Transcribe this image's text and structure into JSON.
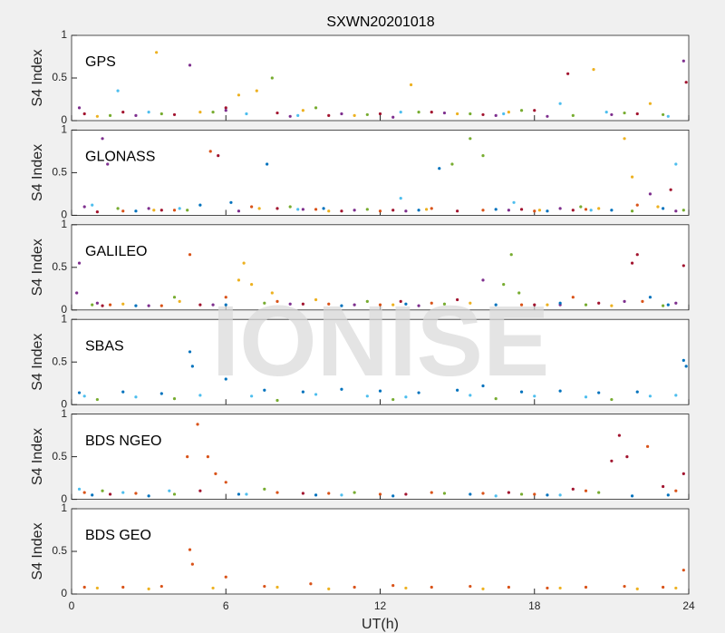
{
  "watermark": "IONISE",
  "chart_data": [
    {
      "type": "scatter",
      "title": "SXWN20201018",
      "label": "GPS",
      "ylabel": "S4 Index",
      "xlim": [
        0,
        24
      ],
      "ylim": [
        0,
        1
      ],
      "yticks": [
        0,
        0.5,
        1
      ],
      "series": [
        {
          "color": "#A2142F",
          "x": [
            0.5,
            2,
            4,
            6,
            8,
            10,
            12,
            14,
            16,
            18,
            19.3,
            22,
            23.9
          ],
          "values": [
            0.08,
            0.1,
            0.07,
            0.15,
            0.09,
            0.06,
            0.08,
            0.1,
            0.07,
            0.12,
            0.55,
            0.08,
            0.45
          ]
        },
        {
          "color": "#EDB120",
          "x": [
            1,
            3.3,
            5,
            6.5,
            7.2,
            9,
            11,
            13.2,
            15,
            17,
            20.3,
            22.5
          ],
          "values": [
            0.05,
            0.8,
            0.1,
            0.3,
            0.35,
            0.12,
            0.06,
            0.42,
            0.08,
            0.1,
            0.6,
            0.2
          ]
        },
        {
          "color": "#7E2F8E",
          "x": [
            0.3,
            2.5,
            4.6,
            6,
            8.5,
            10.5,
            12.5,
            14.5,
            16.5,
            18.5,
            21,
            23.8
          ],
          "values": [
            0.15,
            0.06,
            0.65,
            0.12,
            0.05,
            0.08,
            0.04,
            0.09,
            0.06,
            0.05,
            0.07,
            0.7
          ]
        },
        {
          "color": "#77AC30",
          "x": [
            1.5,
            3.5,
            5.5,
            7.8,
            9.5,
            11.5,
            13.5,
            15.5,
            17.5,
            19.5,
            21.5,
            23
          ],
          "values": [
            0.06,
            0.08,
            0.1,
            0.5,
            0.15,
            0.07,
            0.1,
            0.08,
            0.12,
            0.06,
            0.09,
            0.07
          ]
        },
        {
          "color": "#4DBEEE",
          "x": [
            1.8,
            3,
            6.8,
            8.8,
            12.8,
            16.8,
            19,
            20.8,
            23.2
          ],
          "values": [
            0.35,
            0.1,
            0.08,
            0.06,
            0.1,
            0.08,
            0.2,
            0.1,
            0.05
          ]
        }
      ]
    },
    {
      "type": "scatter",
      "label": "GLONASS",
      "ylabel": "S4 Index",
      "xlim": [
        0,
        24
      ],
      "ylim": [
        0,
        1
      ],
      "yticks": [
        0,
        0.5,
        1
      ],
      "series": [
        {
          "color": "#7E2F8E",
          "x": [
            0.5,
            1.2,
            1.4,
            3,
            6.5,
            9,
            11,
            13,
            17,
            19,
            22.5,
            23.5
          ],
          "values": [
            0.1,
            0.9,
            0.6,
            0.08,
            0.05,
            0.07,
            0.06,
            0.05,
            0.06,
            0.08,
            0.25,
            0.05
          ]
        },
        {
          "color": "#D95319",
          "x": [
            2,
            4,
            5.4,
            7,
            9.5,
            12,
            14,
            16,
            18,
            20,
            22
          ],
          "values": [
            0.05,
            0.06,
            0.75,
            0.1,
            0.07,
            0.05,
            0.08,
            0.06,
            0.05,
            0.07,
            0.12
          ]
        },
        {
          "color": "#A2142F",
          "x": [
            1,
            3.5,
            5.7,
            8,
            10.5,
            12.5,
            15,
            17.5,
            19.5,
            23.3
          ],
          "values": [
            0.04,
            0.06,
            0.7,
            0.08,
            0.05,
            0.06,
            0.05,
            0.07,
            0.06,
            0.3
          ]
        },
        {
          "color": "#0072BD",
          "x": [
            2.5,
            5,
            6.2,
            7.6,
            9.8,
            13.5,
            14.3,
            16.5,
            18.5,
            21,
            23
          ],
          "values": [
            0.05,
            0.12,
            0.15,
            0.6,
            0.08,
            0.06,
            0.55,
            0.07,
            0.05,
            0.06,
            0.08
          ]
        },
        {
          "color": "#77AC30",
          "x": [
            1.8,
            4.5,
            8.5,
            11.5,
            14.8,
            15.5,
            16,
            19.8,
            21.8,
            23.8
          ],
          "values": [
            0.08,
            0.06,
            0.1,
            0.07,
            0.6,
            0.9,
            0.7,
            0.1,
            0.05,
            0.06
          ]
        },
        {
          "color": "#EDB120",
          "x": [
            3.2,
            7.3,
            10,
            13.8,
            18.2,
            20.5,
            21.5,
            21.8,
            22.8
          ],
          "values": [
            0.06,
            0.08,
            0.05,
            0.07,
            0.06,
            0.08,
            0.9,
            0.45,
            0.1
          ]
        },
        {
          "color": "#4DBEEE",
          "x": [
            0.8,
            4.2,
            8.8,
            12.8,
            17.2,
            20.2,
            23.5
          ],
          "values": [
            0.12,
            0.08,
            0.07,
            0.2,
            0.15,
            0.06,
            0.6
          ]
        }
      ]
    },
    {
      "type": "scatter",
      "label": "GALILEO",
      "ylabel": "S4 Index",
      "xlim": [
        0,
        24
      ],
      "ylim": [
        0,
        1
      ],
      "yticks": [
        0,
        0.5,
        1
      ],
      "series": [
        {
          "color": "#7E2F8E",
          "x": [
            0.2,
            0.3,
            1,
            3,
            5.5,
            8.5,
            11,
            13.5,
            16,
            19,
            21.5,
            23.5
          ],
          "values": [
            0.2,
            0.55,
            0.08,
            0.05,
            0.06,
            0.07,
            0.06,
            0.05,
            0.35,
            0.06,
            0.1,
            0.08
          ]
        },
        {
          "color": "#D95319",
          "x": [
            1.5,
            3.5,
            4.6,
            6,
            8,
            10,
            12,
            14,
            17.5,
            19.5,
            22.2
          ],
          "values": [
            0.06,
            0.05,
            0.65,
            0.15,
            0.1,
            0.07,
            0.06,
            0.08,
            0.06,
            0.15,
            0.1
          ]
        },
        {
          "color": "#EDB120",
          "x": [
            2,
            4.2,
            6.5,
            6.7,
            7,
            7.8,
            9.5,
            12.5,
            15.5,
            18.5,
            21
          ],
          "values": [
            0.07,
            0.1,
            0.35,
            0.55,
            0.3,
            0.2,
            0.12,
            0.06,
            0.08,
            0.06,
            0.05
          ]
        },
        {
          "color": "#77AC30",
          "x": [
            0.8,
            4,
            7.5,
            11.5,
            14.5,
            16.8,
            17.1,
            17.4,
            20,
            23
          ],
          "values": [
            0.06,
            0.15,
            0.08,
            0.1,
            0.07,
            0.3,
            0.65,
            0.2,
            0.06,
            0.05
          ]
        },
        {
          "color": "#A2142F",
          "x": [
            1.2,
            5,
            9,
            12.8,
            15,
            18,
            20.5,
            21.8,
            22,
            23.8
          ],
          "values": [
            0.05,
            0.06,
            0.07,
            0.1,
            0.12,
            0.06,
            0.08,
            0.55,
            0.65,
            0.52
          ]
        },
        {
          "color": "#0072BD",
          "x": [
            2.5,
            6,
            10.5,
            13,
            16.5,
            19,
            22.5,
            23.2
          ],
          "values": [
            0.05,
            0.06,
            0.05,
            0.07,
            0.06,
            0.08,
            0.15,
            0.06
          ]
        }
      ]
    },
    {
      "type": "scatter",
      "label": "SBAS",
      "ylabel": "S4 Index",
      "xlim": [
        0,
        24
      ],
      "ylim": [
        0,
        1
      ],
      "yticks": [
        0,
        0.5,
        1
      ],
      "series": [
        {
          "color": "#0072BD",
          "x": [
            0.3,
            2,
            3.5,
            4.6,
            4.7,
            6,
            7.5,
            9,
            10.5,
            12,
            13.5,
            15,
            16,
            17.5,
            19,
            20.5,
            22,
            23.8,
            23.9
          ],
          "values": [
            0.14,
            0.15,
            0.13,
            0.62,
            0.45,
            0.3,
            0.17,
            0.15,
            0.18,
            0.16,
            0.14,
            0.17,
            0.22,
            0.15,
            0.16,
            0.14,
            0.15,
            0.52,
            0.45
          ]
        },
        {
          "color": "#4DBEEE",
          "x": [
            0.5,
            2.5,
            5,
            7,
            9.5,
            11.5,
            13,
            15.5,
            18,
            20,
            22.5,
            23.5
          ],
          "values": [
            0.1,
            0.09,
            0.11,
            0.1,
            0.12,
            0.1,
            0.09,
            0.11,
            0.1,
            0.09,
            0.1,
            0.11
          ]
        },
        {
          "color": "#77AC30",
          "x": [
            1,
            4,
            8,
            12.5,
            16.5,
            21
          ],
          "values": [
            0.06,
            0.07,
            0.05,
            0.06,
            0.07,
            0.06
          ]
        }
      ]
    },
    {
      "type": "scatter",
      "label": "BDS NGEO",
      "ylabel": "S4 Index",
      "xlim": [
        0,
        24
      ],
      "ylim": [
        0,
        1
      ],
      "yticks": [
        0,
        0.5,
        1
      ],
      "series": [
        {
          "color": "#D95319",
          "x": [
            0.5,
            2.5,
            4.5,
            4.9,
            5.3,
            5.6,
            6,
            8,
            10,
            12,
            14,
            16,
            18,
            20,
            22.4,
            23.5
          ],
          "values": [
            0.08,
            0.07,
            0.5,
            0.88,
            0.5,
            0.3,
            0.2,
            0.08,
            0.07,
            0.06,
            0.08,
            0.07,
            0.06,
            0.1,
            0.62,
            0.1
          ]
        },
        {
          "color": "#A2142F",
          "x": [
            1.5,
            5,
            9,
            13,
            17,
            19.5,
            21,
            21.3,
            21.6,
            23,
            23.8
          ],
          "values": [
            0.06,
            0.1,
            0.07,
            0.06,
            0.08,
            0.12,
            0.45,
            0.75,
            0.5,
            0.15,
            0.3
          ]
        },
        {
          "color": "#0072BD",
          "x": [
            0.8,
            3,
            6.5,
            9.5,
            12.5,
            15.5,
            18.5,
            21.8,
            23.2
          ],
          "values": [
            0.05,
            0.04,
            0.06,
            0.05,
            0.04,
            0.06,
            0.05,
            0.04,
            0.05
          ]
        },
        {
          "color": "#77AC30",
          "x": [
            1.2,
            4,
            7.5,
            11,
            14.5,
            17.5,
            20.5
          ],
          "values": [
            0.1,
            0.06,
            0.12,
            0.08,
            0.07,
            0.06,
            0.08
          ]
        },
        {
          "color": "#4DBEEE",
          "x": [
            0.3,
            2,
            3.8,
            6.8,
            10.5,
            16.5,
            19
          ],
          "values": [
            0.12,
            0.08,
            0.1,
            0.06,
            0.05,
            0.04,
            0.05
          ]
        }
      ]
    },
    {
      "type": "scatter",
      "label": "BDS GEO",
      "ylabel": "S4 Index",
      "xlabel": "UT(h)",
      "xlim": [
        0,
        24
      ],
      "ylim": [
        0,
        1
      ],
      "yticks": [
        0,
        0.5,
        1
      ],
      "xticks": [
        0,
        6,
        12,
        18,
        24
      ],
      "series": [
        {
          "color": "#D95319",
          "x": [
            0.5,
            2,
            3.5,
            4.6,
            4.7,
            6,
            7.5,
            9.3,
            11,
            12.5,
            14,
            15.5,
            17,
            18.5,
            20,
            21.5,
            23,
            23.8
          ],
          "values": [
            0.08,
            0.08,
            0.09,
            0.52,
            0.35,
            0.2,
            0.09,
            0.12,
            0.08,
            0.1,
            0.08,
            0.09,
            0.08,
            0.07,
            0.08,
            0.09,
            0.08,
            0.28
          ]
        },
        {
          "color": "#EDB120",
          "x": [
            1,
            3,
            5.5,
            8,
            10,
            13,
            16,
            19,
            22,
            23.5
          ],
          "values": [
            0.07,
            0.06,
            0.07,
            0.08,
            0.06,
            0.07,
            0.06,
            0.07,
            0.06,
            0.07
          ]
        }
      ]
    }
  ]
}
